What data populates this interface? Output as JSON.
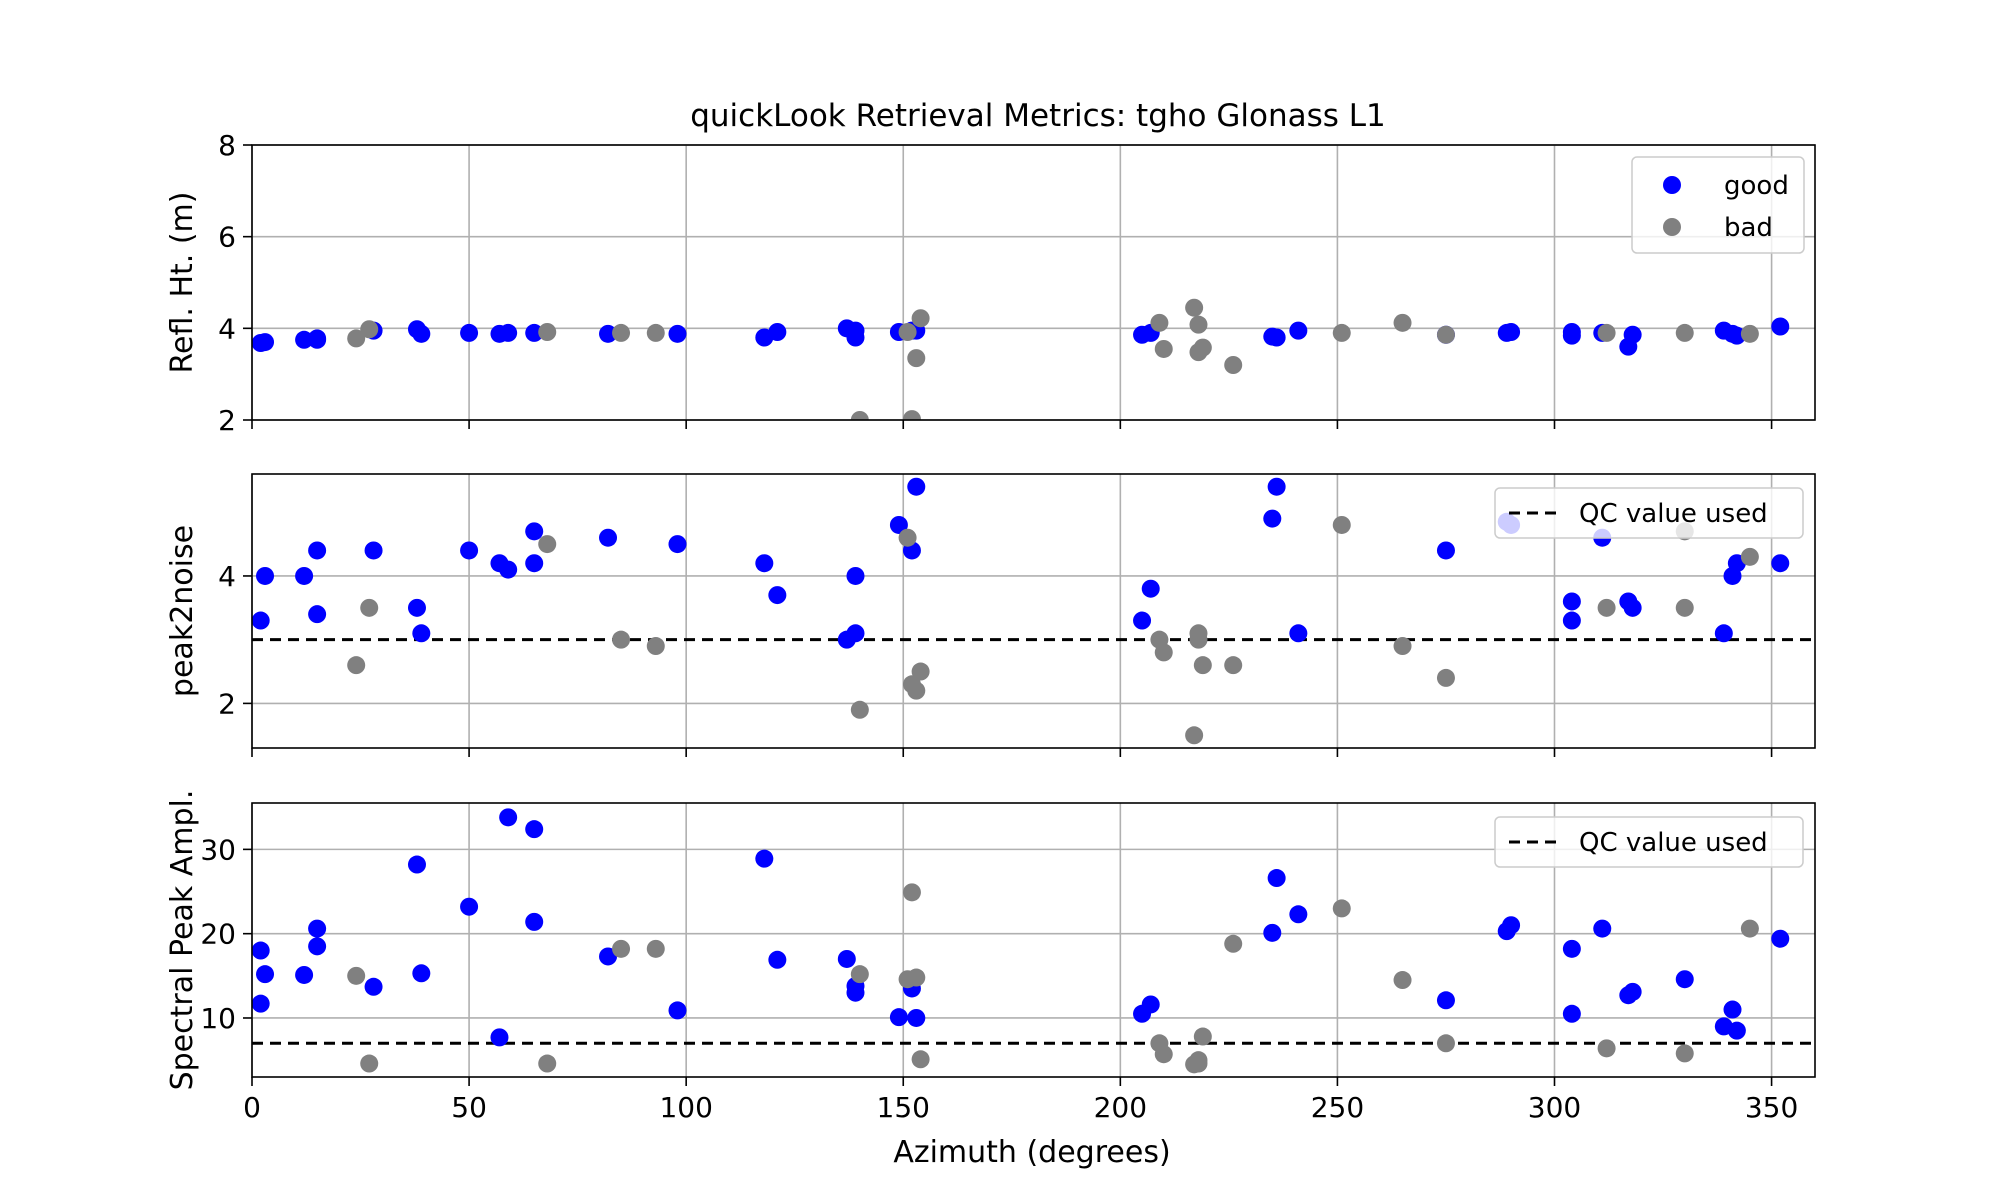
{
  "chart_data": {
    "type": "scatter",
    "title": "quickLook Retrieval Metrics: tgho Glonass L1",
    "xlabel": "Azimuth (degrees)",
    "xlim": [
      0,
      360
    ],
    "x_ticks": [
      0,
      50,
      100,
      150,
      200,
      250,
      300,
      350
    ],
    "grid": true,
    "colors": {
      "good": "#0000ff",
      "bad": "#808080",
      "qc_line": "#000000"
    },
    "panels": [
      {
        "ylabel": "Refl. Ht. (m)",
        "ylim": [
          2,
          8
        ],
        "y_ticks": [
          2,
          4,
          6,
          8
        ],
        "legend": {
          "placement": "top-right",
          "entries": [
            "good",
            "bad"
          ]
        },
        "series": [
          {
            "name": "good",
            "points": [
              [
                2,
                3.68
              ],
              [
                3,
                3.7
              ],
              [
                12,
                3.75
              ],
              [
                15,
                3.78
              ],
              [
                15,
                3.75
              ],
              [
                28,
                3.95
              ],
              [
                38,
                3.98
              ],
              [
                39,
                3.88
              ],
              [
                50,
                3.9
              ],
              [
                57,
                3.88
              ],
              [
                59,
                3.9
              ],
              [
                65,
                3.9
              ],
              [
                82,
                3.88
              ],
              [
                98,
                3.88
              ],
              [
                118,
                3.8
              ],
              [
                121,
                3.92
              ],
              [
                137,
                4.0
              ],
              [
                139,
                3.95
              ],
              [
                139,
                3.8
              ],
              [
                149,
                3.92
              ],
              [
                152,
                3.95
              ],
              [
                153,
                3.95
              ],
              [
                205,
                3.86
              ],
              [
                207,
                3.9
              ],
              [
                235,
                3.82
              ],
              [
                236,
                3.8
              ],
              [
                241,
                3.95
              ],
              [
                275,
                3.86
              ],
              [
                289,
                3.9
              ],
              [
                290,
                3.92
              ],
              [
                304,
                3.92
              ],
              [
                304,
                3.84
              ],
              [
                311,
                3.9
              ],
              [
                317,
                3.6
              ],
              [
                318,
                3.86
              ],
              [
                339,
                3.95
              ],
              [
                341,
                3.88
              ],
              [
                342,
                3.84
              ],
              [
                352,
                4.04
              ]
            ]
          },
          {
            "name": "bad",
            "points": [
              [
                24,
                3.78
              ],
              [
                27,
                3.98
              ],
              [
                68,
                3.92
              ],
              [
                85,
                3.9
              ],
              [
                93,
                3.9
              ],
              [
                140,
                2.0
              ],
              [
                151,
                3.92
              ],
              [
                152,
                2.02
              ],
              [
                153,
                3.35
              ],
              [
                154,
                4.22
              ],
              [
                209,
                4.12
              ],
              [
                210,
                3.55
              ],
              [
                217,
                4.45
              ],
              [
                218,
                3.48
              ],
              [
                218,
                4.08
              ],
              [
                219,
                3.58
              ],
              [
                226,
                3.2
              ],
              [
                251,
                3.9
              ],
              [
                265,
                4.12
              ],
              [
                275,
                3.86
              ],
              [
                312,
                3.9
              ],
              [
                330,
                3.9
              ],
              [
                345,
                3.88
              ]
            ]
          }
        ]
      },
      {
        "ylabel": "peak2noise",
        "ylim": [
          1.3,
          5.6
        ],
        "y_ticks": [
          2,
          4
        ],
        "qc_value": 3.0,
        "legend": {
          "placement": "top-right",
          "entries": [
            "QC value used"
          ]
        },
        "series": [
          {
            "name": "good",
            "points": [
              [
                2,
                3.3
              ],
              [
                3,
                4.0
              ],
              [
                12,
                4.0
              ],
              [
                15,
                3.4
              ],
              [
                15,
                4.4
              ],
              [
                28,
                4.4
              ],
              [
                38,
                3.5
              ],
              [
                39,
                3.1
              ],
              [
                50,
                4.4
              ],
              [
                57,
                4.2
              ],
              [
                59,
                4.1
              ],
              [
                65,
                4.7
              ],
              [
                65,
                4.2
              ],
              [
                82,
                4.6
              ],
              [
                98,
                4.5
              ],
              [
                118,
                4.2
              ],
              [
                121,
                3.7
              ],
              [
                137,
                3.0
              ],
              [
                139,
                3.1
              ],
              [
                139,
                4.0
              ],
              [
                149,
                4.8
              ],
              [
                152,
                4.4
              ],
              [
                153,
                5.4
              ],
              [
                205,
                3.3
              ],
              [
                207,
                3.8
              ],
              [
                235,
                4.9
              ],
              [
                236,
                5.4
              ],
              [
                241,
                3.1
              ],
              [
                275,
                4.4
              ],
              [
                289,
                4.85
              ],
              [
                290,
                4.8
              ],
              [
                304,
                3.6
              ],
              [
                304,
                3.3
              ],
              [
                311,
                4.6
              ],
              [
                317,
                3.6
              ],
              [
                318,
                3.5
              ],
              [
                339,
                3.1
              ],
              [
                341,
                4.0
              ],
              [
                342,
                4.2
              ],
              [
                352,
                4.2
              ]
            ]
          },
          {
            "name": "bad",
            "points": [
              [
                24,
                2.6
              ],
              [
                27,
                3.5
              ],
              [
                68,
                4.5
              ],
              [
                85,
                3.0
              ],
              [
                93,
                2.9
              ],
              [
                140,
                1.9
              ],
              [
                151,
                4.6
              ],
              [
                152,
                2.3
              ],
              [
                153,
                2.2
              ],
              [
                154,
                2.5
              ],
              [
                209,
                3.0
              ],
              [
                210,
                2.8
              ],
              [
                217,
                1.5
              ],
              [
                218,
                3.1
              ],
              [
                218,
                3.0
              ],
              [
                219,
                2.6
              ],
              [
                226,
                2.6
              ],
              [
                251,
                4.8
              ],
              [
                265,
                2.9
              ],
              [
                275,
                2.4
              ],
              [
                312,
                3.5
              ],
              [
                330,
                3.5
              ],
              [
                330,
                4.7
              ],
              [
                345,
                4.3
              ]
            ]
          }
        ]
      },
      {
        "ylabel": "Spectral Peak Ampl.",
        "ylim": [
          3,
          35.5
        ],
        "y_ticks": [
          10,
          20,
          30
        ],
        "qc_value": 7.0,
        "legend": {
          "placement": "top-right",
          "entries": [
            "QC value used"
          ]
        },
        "series": [
          {
            "name": "good",
            "points": [
              [
                2,
                18.0
              ],
              [
                2,
                11.7
              ],
              [
                3,
                15.2
              ],
              [
                12,
                15.1
              ],
              [
                15,
                20.6
              ],
              [
                15,
                18.5
              ],
              [
                28,
                13.7
              ],
              [
                38,
                28.2
              ],
              [
                39,
                15.3
              ],
              [
                50,
                23.2
              ],
              [
                57,
                7.7
              ],
              [
                59,
                33.8
              ],
              [
                65,
                32.4
              ],
              [
                65,
                21.4
              ],
              [
                82,
                17.3
              ],
              [
                98,
                10.9
              ],
              [
                118,
                28.9
              ],
              [
                121,
                16.9
              ],
              [
                137,
                17.0
              ],
              [
                139,
                13.0
              ],
              [
                139,
                13.8
              ],
              [
                149,
                10.1
              ],
              [
                152,
                13.5
              ],
              [
                153,
                10.0
              ],
              [
                205,
                10.5
              ],
              [
                207,
                11.6
              ],
              [
                235,
                20.1
              ],
              [
                236,
                26.6
              ],
              [
                241,
                22.3
              ],
              [
                275,
                12.1
              ],
              [
                289,
                20.3
              ],
              [
                290,
                21.0
              ],
              [
                304,
                18.2
              ],
              [
                304,
                10.5
              ],
              [
                311,
                20.6
              ],
              [
                317,
                12.7
              ],
              [
                318,
                13.1
              ],
              [
                330,
                14.6
              ],
              [
                339,
                9.0
              ],
              [
                341,
                11.0
              ],
              [
                342,
                8.5
              ],
              [
                352,
                19.4
              ]
            ]
          },
          {
            "name": "bad",
            "points": [
              [
                24,
                15.0
              ],
              [
                27,
                4.6
              ],
              [
                68,
                4.6
              ],
              [
                85,
                18.2
              ],
              [
                93,
                18.2
              ],
              [
                140,
                15.2
              ],
              [
                151,
                14.6
              ],
              [
                152,
                24.9
              ],
              [
                153,
                14.8
              ],
              [
                154,
                5.1
              ],
              [
                209,
                7.0
              ],
              [
                210,
                5.7
              ],
              [
                217,
                4.5
              ],
              [
                218,
                4.6
              ],
              [
                218,
                5.0
              ],
              [
                219,
                7.8
              ],
              [
                226,
                18.8
              ],
              [
                251,
                23.0
              ],
              [
                265,
                14.5
              ],
              [
                275,
                7.0
              ],
              [
                312,
                6.4
              ],
              [
                330,
                5.8
              ],
              [
                345,
                20.6
              ]
            ]
          }
        ]
      }
    ]
  }
}
